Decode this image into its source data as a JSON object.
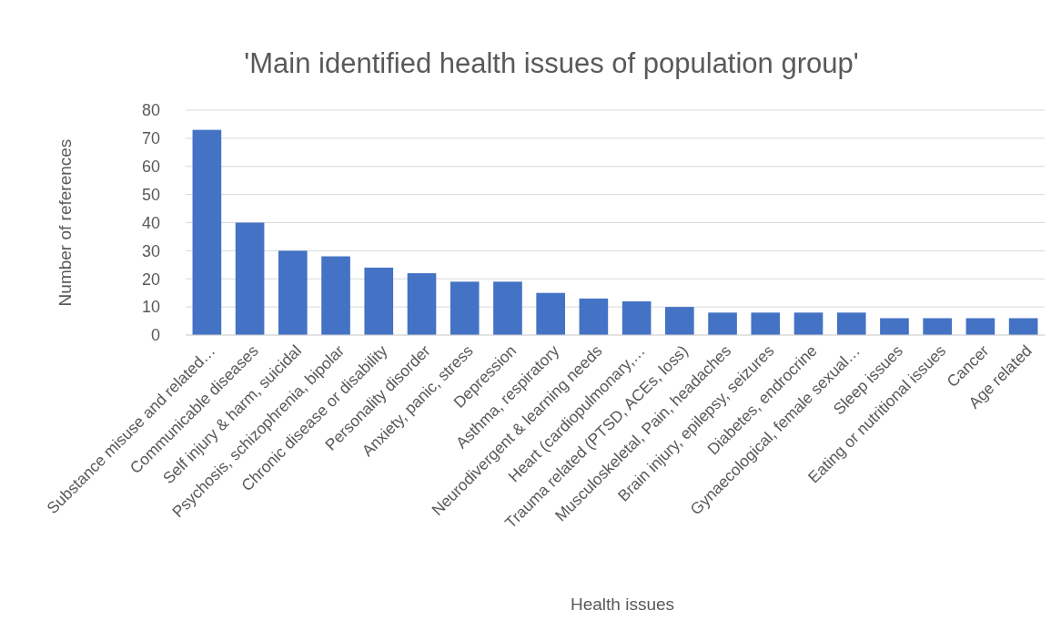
{
  "chart_data": {
    "type": "bar",
    "title": "'Main identified health issues of population group'",
    "xlabel": "Health issues",
    "ylabel": "Number of references",
    "categories": [
      "Substance misuse and related…",
      "Communicable diseases",
      "Self injury & harm, suicidal",
      "Psychosis, schizophrenia, bipolar",
      "Chronic disease or disability",
      "Personality disorder",
      "Anxiety, panic, stress",
      "Depression",
      "Asthma, respiratory",
      "Neurodivergent & learning needs",
      "Heart (cardiopulmonary,…",
      "Trauma related (PTSD, ACEs, loss)",
      "Musculoskeletal, Pain, headaches",
      "Brain injury, epilepsy, seizures",
      "Diabetes, endrocrine",
      "Gynaecological, female sexual…",
      "Sleep issues",
      "Eating or nutritional issues",
      "Cancer",
      "Age related"
    ],
    "values": [
      73,
      40,
      30,
      28,
      24,
      22,
      19,
      19,
      15,
      13,
      12,
      10,
      8,
      8,
      8,
      8,
      6,
      6,
      6,
      6
    ],
    "color": "#4472c4",
    "ylim": [
      0,
      80
    ],
    "yticks": [
      0,
      10,
      20,
      30,
      40,
      50,
      60,
      70,
      80
    ],
    "grid": "y"
  }
}
